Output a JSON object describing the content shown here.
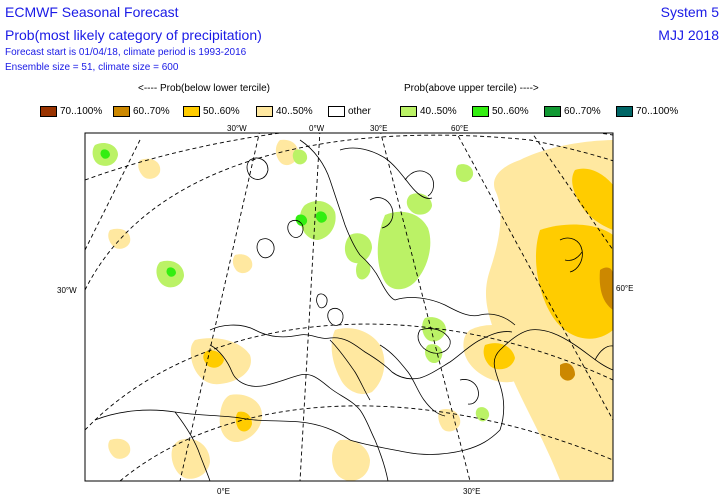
{
  "header": {
    "title": "ECMWF Seasonal Forecast",
    "subtitle": "Prob(most likely category of precipitation)",
    "info_line1": "Forecast start is 01/04/18, climate period is 1993-2016",
    "info_line2": "Ensemble size = 51, climate size = 600",
    "system": "System 5",
    "season": "MJJ 2018"
  },
  "captions": {
    "below": "<---- Prob(below lower tercile)",
    "above": "Prob(above upper tercile) ---->"
  },
  "legend": [
    {
      "label": "70..100%",
      "color": "#993300"
    },
    {
      "label": "60..70%",
      "color": "#cc8800"
    },
    {
      "label": "50..60%",
      "color": "#ffcc00"
    },
    {
      "label": "40..50%",
      "color": "#ffe8a0"
    },
    {
      "label": "other",
      "color": "#ffffff"
    },
    {
      "label": "40..50%",
      "color": "#bbf266"
    },
    {
      "label": "50..60%",
      "color": "#33ee11"
    },
    {
      "label": "60..70%",
      "color": "#119933"
    },
    {
      "label": "70..100%",
      "color": "#006666"
    }
  ],
  "graticule_labels": {
    "top": [
      "30°W",
      "0°W",
      "30°E",
      "60°E"
    ],
    "left": "30°W",
    "right": "60°E",
    "bottom": [
      "0°E",
      "30°E"
    ]
  }
}
